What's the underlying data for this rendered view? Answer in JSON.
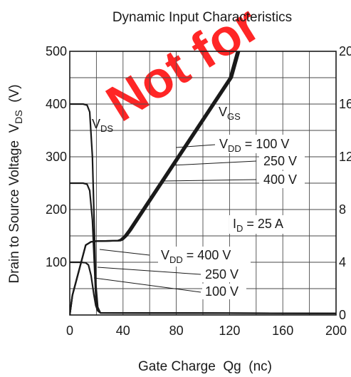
{
  "watermark": {
    "text": "Not for",
    "color": "#ff0000"
  },
  "chart_data": {
    "type": "line",
    "title": "Dynamic Input Characteristics",
    "xlabel": "Gate Charge  Qg  (nc)",
    "ylabel": {
      "pre": "Drain to Source Voltage  V",
      "sub": "DS",
      "post": "  (V)"
    },
    "xlim": [
      0,
      200
    ],
    "ylim": [
      0,
      500
    ],
    "y2lim": [
      0,
      20
    ],
    "x_ticks": [
      "0",
      "40",
      "80",
      "120",
      "160",
      "200"
    ],
    "y_ticks": [
      "100",
      "200",
      "300",
      "400",
      "500"
    ],
    "y2_ticks": [
      "0",
      "4",
      "8",
      "12",
      "16",
      "20"
    ],
    "grid": true,
    "line_color": "#1a1a1a",
    "annotations": {
      "vds": {
        "main": "V",
        "sub": "DS"
      },
      "vgs": {
        "main": "V",
        "sub": "GS"
      },
      "vdd_upper": {
        "pre": "V",
        "sub": "DD",
        "post": " = 100 V"
      },
      "vdd_upper_250": "250 V",
      "vdd_upper_400": "400 V",
      "id": {
        "pre": "I",
        "sub": "D",
        "post": " = 25 A"
      },
      "vdd_lower": {
        "pre": "V",
        "sub": "DD",
        "post": " = 400 V"
      },
      "vdd_lower_250": "250 V",
      "vdd_lower_100": "100 V"
    },
    "series": [
      {
        "axis": "left",
        "x": [
          0,
          10,
          13,
          15,
          17,
          18.5,
          19.5,
          21,
          23,
          200
        ],
        "y": [
          400,
          400,
          398,
          385,
          300,
          160,
          60,
          15,
          4,
          3
        ]
      },
      {
        "axis": "left",
        "x": [
          0,
          10,
          13,
          15,
          17,
          18.5,
          19.5,
          21,
          23,
          200
        ],
        "y": [
          250,
          250,
          248,
          236,
          180,
          95,
          35,
          10,
          4,
          3
        ]
      },
      {
        "axis": "left",
        "x": [
          0,
          8,
          12,
          14,
          16,
          18,
          19.5,
          21,
          23,
          200
        ],
        "y": [
          100,
          100,
          99,
          95,
          75,
          40,
          18,
          8,
          4,
          3
        ]
      },
      {
        "axis": "right",
        "x": [
          0,
          2,
          12,
          16,
          20,
          30,
          36,
          38,
          41,
          44,
          120,
          125.5
        ],
        "y": [
          0,
          1.5,
          5.3,
          5.55,
          5.6,
          5.62,
          5.64,
          5.72,
          6.0,
          6.4,
          18.0,
          20.0
        ]
      },
      {
        "axis": "right",
        "x": [
          0,
          2,
          12,
          16,
          20,
          30,
          37,
          39,
          42,
          45,
          121,
          126.5
        ],
        "y": [
          0,
          1.5,
          5.3,
          5.55,
          5.6,
          5.62,
          5.64,
          5.72,
          6.0,
          6.4,
          18.0,
          20.0
        ]
      },
      {
        "axis": "right",
        "x": [
          0,
          2,
          12,
          16,
          20,
          30,
          38,
          40,
          43,
          46,
          122,
          127.5
        ],
        "y": [
          0,
          1.5,
          5.3,
          5.55,
          5.6,
          5.62,
          5.64,
          5.72,
          6.0,
          6.4,
          18.0,
          20.0
        ]
      }
    ]
  }
}
